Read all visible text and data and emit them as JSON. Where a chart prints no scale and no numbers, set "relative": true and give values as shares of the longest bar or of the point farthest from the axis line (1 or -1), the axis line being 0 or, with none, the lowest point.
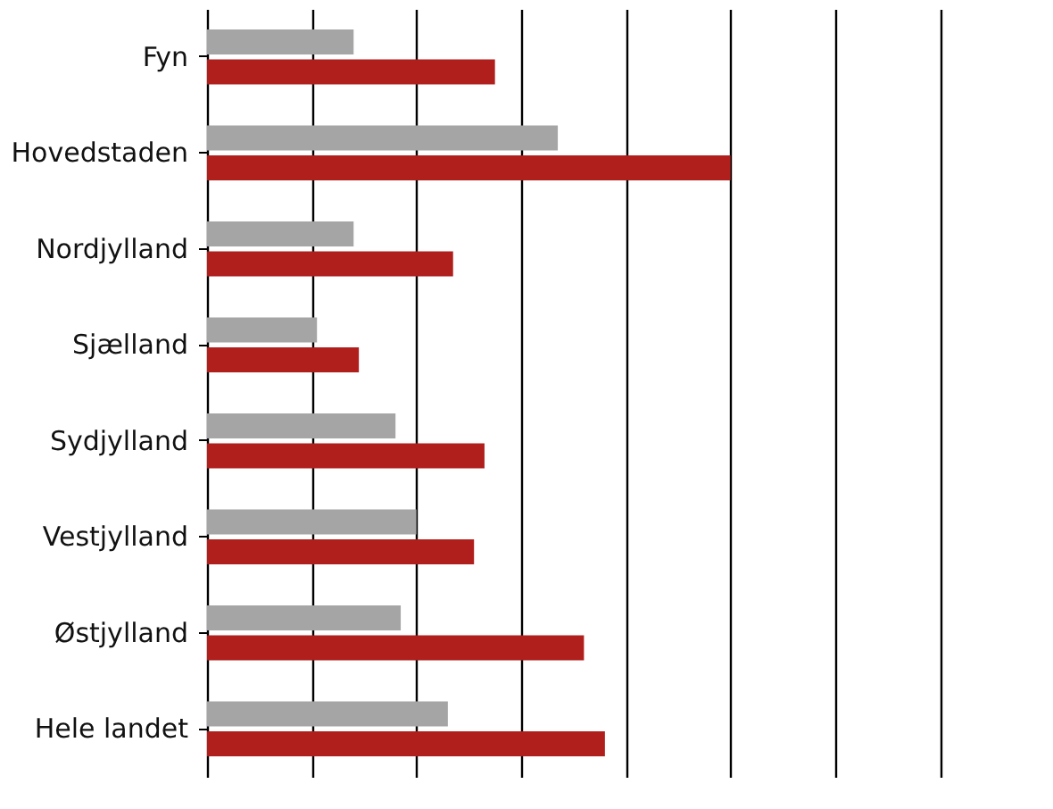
{
  "chart_data": {
    "type": "bar",
    "orientation": "horizontal",
    "relative": true,
    "grid": "x",
    "categories": [
      "Fyn",
      "Hovedstaden",
      "Nordjylland",
      "Sjælland",
      "Sydjylland",
      "Vestjylland",
      "Østjylland",
      "Hele landet"
    ],
    "series": [
      {
        "color": "#a5a5a5",
        "values": [
          0.28,
          0.67,
          0.28,
          0.21,
          0.36,
          0.4,
          0.37,
          0.46
        ]
      },
      {
        "color": "#b01f1c",
        "values": [
          0.55,
          1.0,
          0.47,
          0.29,
          0.53,
          0.51,
          0.72,
          0.76
        ]
      }
    ]
  }
}
